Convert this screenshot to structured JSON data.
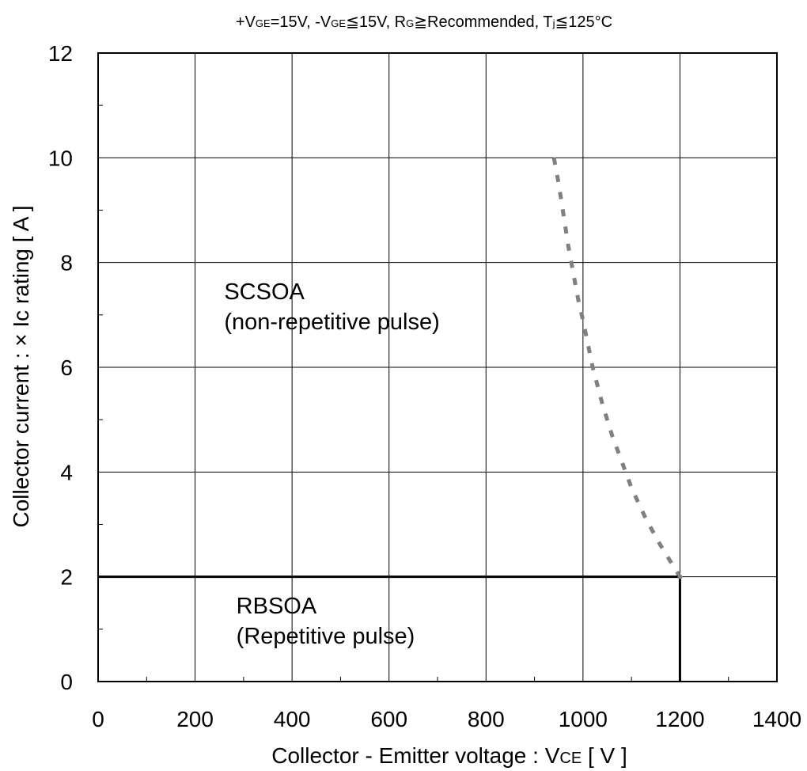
{
  "chart_data": {
    "type": "line",
    "condition": {
      "parts": [
        {
          "text": "+V",
          "sub": false
        },
        {
          "text": "GE",
          "sub": true
        },
        {
          "text": "=15V, -V",
          "sub": false
        },
        {
          "text": "GE",
          "sub": true
        },
        {
          "text": "≦15V, R",
          "sub": false
        },
        {
          "text": "G",
          "sub": true
        },
        {
          "text": "≧Recommended, T",
          "sub": false
        },
        {
          "text": "j",
          "sub": true
        },
        {
          "text": "≦125°C",
          "sub": false
        }
      ]
    },
    "xlabel": {
      "parts": [
        {
          "text": "Collector - Emitter voltage : V",
          "sub": false
        },
        {
          "text": "CE",
          "sub": true
        },
        {
          "text": "  [ V ]",
          "sub": false
        }
      ]
    },
    "ylabel": "Collector current : × Ic rating  [ A ]",
    "xlim": [
      0,
      1400
    ],
    "ylim": [
      0,
      12
    ],
    "x_ticks": [
      "0",
      "200",
      "400",
      "600",
      "800",
      "1000",
      "1200",
      "1400"
    ],
    "y_ticks": [
      "0",
      "2",
      "4",
      "6",
      "8",
      "10",
      "12"
    ],
    "grid": true,
    "series": [
      {
        "name": "SCSOA",
        "style": "dotted",
        "color": "#808080",
        "x": [
          940,
          950,
          960,
          970,
          980,
          990,
          1000,
          1020,
          1040,
          1060,
          1080,
          1100,
          1130,
          1160,
          1200
        ],
        "y": [
          10.0,
          9.5,
          8.9,
          8.3,
          7.8,
          7.3,
          6.9,
          6.0,
          5.3,
          4.7,
          4.2,
          3.7,
          3.1,
          2.6,
          2.0
        ]
      },
      {
        "name": "RBSOA",
        "style": "solid",
        "color": "#000000",
        "x": [
          0,
          1200,
          1200
        ],
        "y": [
          2,
          2,
          0
        ]
      }
    ],
    "annotations": [
      {
        "lines": [
          "SCSOA",
          "(non-repetitive pulse)"
        ],
        "x": 260,
        "y": 7.3
      },
      {
        "lines": [
          "RBSOA",
          "(Repetitive pulse)"
        ],
        "x": 285,
        "y": 1.3
      }
    ]
  }
}
